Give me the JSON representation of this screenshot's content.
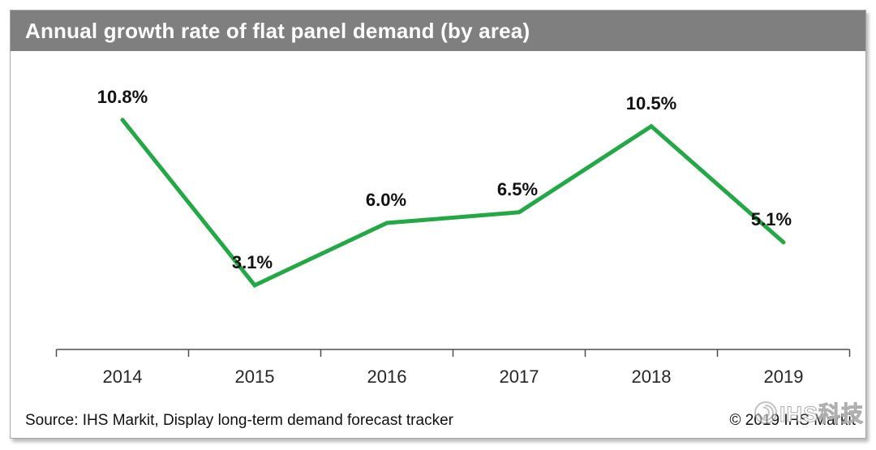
{
  "header": {
    "title": "Annual growth rate of flat panel demand (by area)"
  },
  "footer": {
    "source": "Source: IHS Markit, Display long-term demand forecast tracker",
    "copyright": "© 2019 IHS Markit",
    "watermark_text": "IHS科技"
  },
  "chart_data": {
    "type": "line",
    "title": "Annual growth rate of flat panel demand (by area)",
    "categories": [
      "2014",
      "2015",
      "2016",
      "2017",
      "2018",
      "2019"
    ],
    "values": [
      10.8,
      3.1,
      6.0,
      6.5,
      10.5,
      5.1
    ],
    "point_labels": [
      "10.8%",
      "3.1%",
      "6.0%",
      "6.5%",
      "10.5%",
      "5.1%"
    ],
    "xlabel": "",
    "ylabel": "",
    "ylim": [
      0,
      13
    ],
    "unit": "%",
    "grid": false,
    "legend": "none",
    "line_color": "#22a845",
    "axis_color": "#4d4d4d",
    "label_color": "#111111",
    "year_label_color": "#262626",
    "title_bar_color": "#7f7f7f"
  }
}
